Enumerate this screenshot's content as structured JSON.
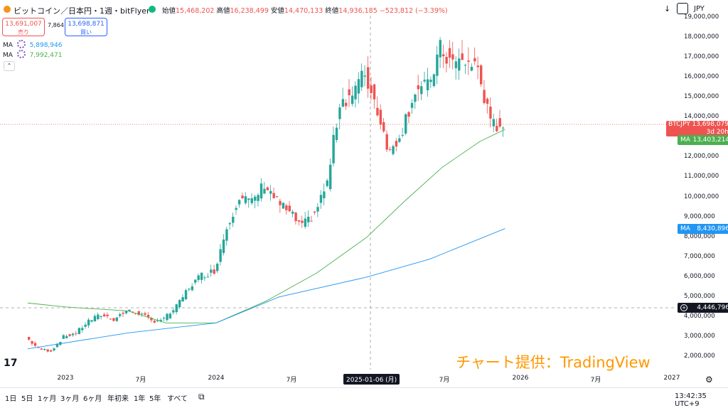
{
  "header": {
    "symbol_title": "ビットコイン／日本円・1週・bitFlyer",
    "ohlc": {
      "open_label": "始値",
      "open": "15,468,202",
      "high_label": "高値",
      "high": "16,238,499",
      "low_label": "安値",
      "low": "14,470,133",
      "close_label": "終値",
      "close": "14,936,185",
      "change": "−523,812 (−3.39%)"
    },
    "currency": "JPY"
  },
  "trade": {
    "sell_price": "13,691,007",
    "sell_label": "売り",
    "spread": "7,864",
    "buy_price": "13,698,871",
    "buy_label": "買い"
  },
  "indicators": [
    {
      "name": "MA",
      "value": "5,898,946",
      "color": "#2196f3"
    },
    {
      "name": "MA",
      "value": "7,992,471",
      "color": "#4caf50"
    }
  ],
  "price_tags": {
    "symbol": "BTCJPY",
    "price": "13,698,079",
    "countdown": "3d 20h",
    "ma_label": "MA",
    "ma_green": "13,403,214",
    "ma_blue": "8,430,896",
    "crosshair": "4,446,796"
  },
  "watermark": "チャート提供：TradingView",
  "bottom": {
    "ranges": [
      "1日",
      "5日",
      "1ヶ月",
      "3ヶ月",
      "6ヶ月",
      "年初来",
      "1年",
      "5年",
      "すべて"
    ],
    "clock": "13:42:35 UTC+9"
  },
  "chart_data": {
    "type": "candlestick",
    "y_ticks": [
      "2,000,000",
      "3,000,000",
      "4,000,000",
      "5,000,000",
      "6,000,000",
      "7,000,000",
      "8,000,000",
      "9,000,000",
      "10,000,000",
      "11,000,000",
      "12,000,000",
      "13,000,000",
      "14,000,000",
      "15,000,000",
      "16,000,000",
      "17,000,000",
      "18,000,000",
      "19,000,000"
    ],
    "x_ticks": [
      "2023",
      "7月",
      "2024",
      "7月",
      "2025-01-06 (月)",
      "7月",
      "2026",
      "7月",
      "2027"
    ],
    "up_color": "#26a69a",
    "down_color": "#ef5350",
    "ylim": [
      1450000,
      19500000
    ],
    "close_series": [
      [
        "2022-10",
        3000000
      ],
      [
        "2022-11",
        2400000
      ],
      [
        "2022-12",
        2300000
      ],
      [
        "2023-01",
        3000000
      ],
      [
        "2023-02",
        3200000
      ],
      [
        "2023-03",
        3800000
      ],
      [
        "2023-04",
        4100000
      ],
      [
        "2023-05",
        3900000
      ],
      [
        "2023-06",
        4300000
      ],
      [
        "2023-07",
        4200000
      ],
      [
        "2023-08",
        3800000
      ],
      [
        "2023-09",
        3900000
      ],
      [
        "2023-10",
        4500000
      ],
      [
        "2023-11",
        5500000
      ],
      [
        "2023-12",
        6100000
      ],
      [
        "2024-01",
        6300000
      ],
      [
        "2024-02",
        8500000
      ],
      [
        "2024-03",
        10100000
      ],
      [
        "2024-04",
        9700000
      ],
      [
        "2024-05",
        10700000
      ],
      [
        "2024-06",
        9800000
      ],
      [
        "2024-07",
        9200000
      ],
      [
        "2024-08",
        8500000
      ],
      [
        "2024-09",
        9200000
      ],
      [
        "2024-10",
        10700000
      ],
      [
        "2024-11",
        14800000
      ],
      [
        "2024-12",
        15200000
      ],
      [
        "2025-01",
        16200000
      ],
      [
        "2025-02",
        14400000
      ],
      [
        "2025-03",
        12200000
      ],
      [
        "2025-04",
        13500000
      ],
      [
        "2025-05",
        15400000
      ],
      [
        "2025-06",
        15500000
      ],
      [
        "2025-07",
        17400000
      ],
      [
        "2025-08",
        16700000
      ],
      [
        "2025-09",
        16800000
      ],
      [
        "2025-10",
        16500000
      ],
      [
        "2025-11",
        13600000
      ],
      [
        "2025-12",
        13700000
      ]
    ],
    "ma_green": [
      [
        "2022-10",
        4700000
      ],
      [
        "2023-01",
        4500000
      ],
      [
        "2023-06",
        4300000
      ],
      [
        "2023-09",
        3700000
      ],
      [
        "2024-01",
        3700000
      ],
      [
        "2024-05",
        4800000
      ],
      [
        "2024-09",
        6200000
      ],
      [
        "2025-01",
        8000000
      ],
      [
        "2025-04",
        9800000
      ],
      [
        "2025-07",
        11500000
      ],
      [
        "2025-10",
        12800000
      ],
      [
        "2025-12",
        13403214
      ]
    ],
    "ma_blue": [
      [
        "2022-10",
        2400000
      ],
      [
        "2023-06",
        3200000
      ],
      [
        "2024-01",
        3700000
      ],
      [
        "2024-06",
        5000000
      ],
      [
        "2025-01",
        6000000
      ],
      [
        "2025-06",
        6900000
      ],
      [
        "2025-12",
        8430896
      ]
    ]
  }
}
